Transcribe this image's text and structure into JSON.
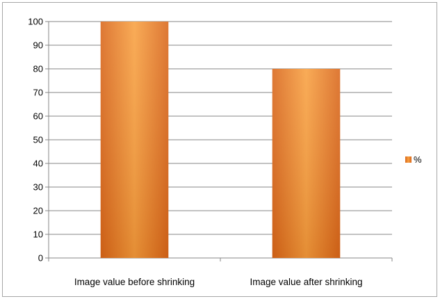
{
  "chart_data": {
    "type": "bar",
    "categories": [
      "Image value before shrinking",
      "Image value after shrinking"
    ],
    "series": [
      {
        "name": "%",
        "values": [
          100,
          80
        ],
        "color": "#f28e2b"
      }
    ],
    "ylim": [
      0,
      100
    ],
    "yticks": [
      0,
      10,
      20,
      30,
      40,
      50,
      60,
      70,
      80,
      90,
      100
    ],
    "grid": true,
    "legend_position": "right"
  }
}
